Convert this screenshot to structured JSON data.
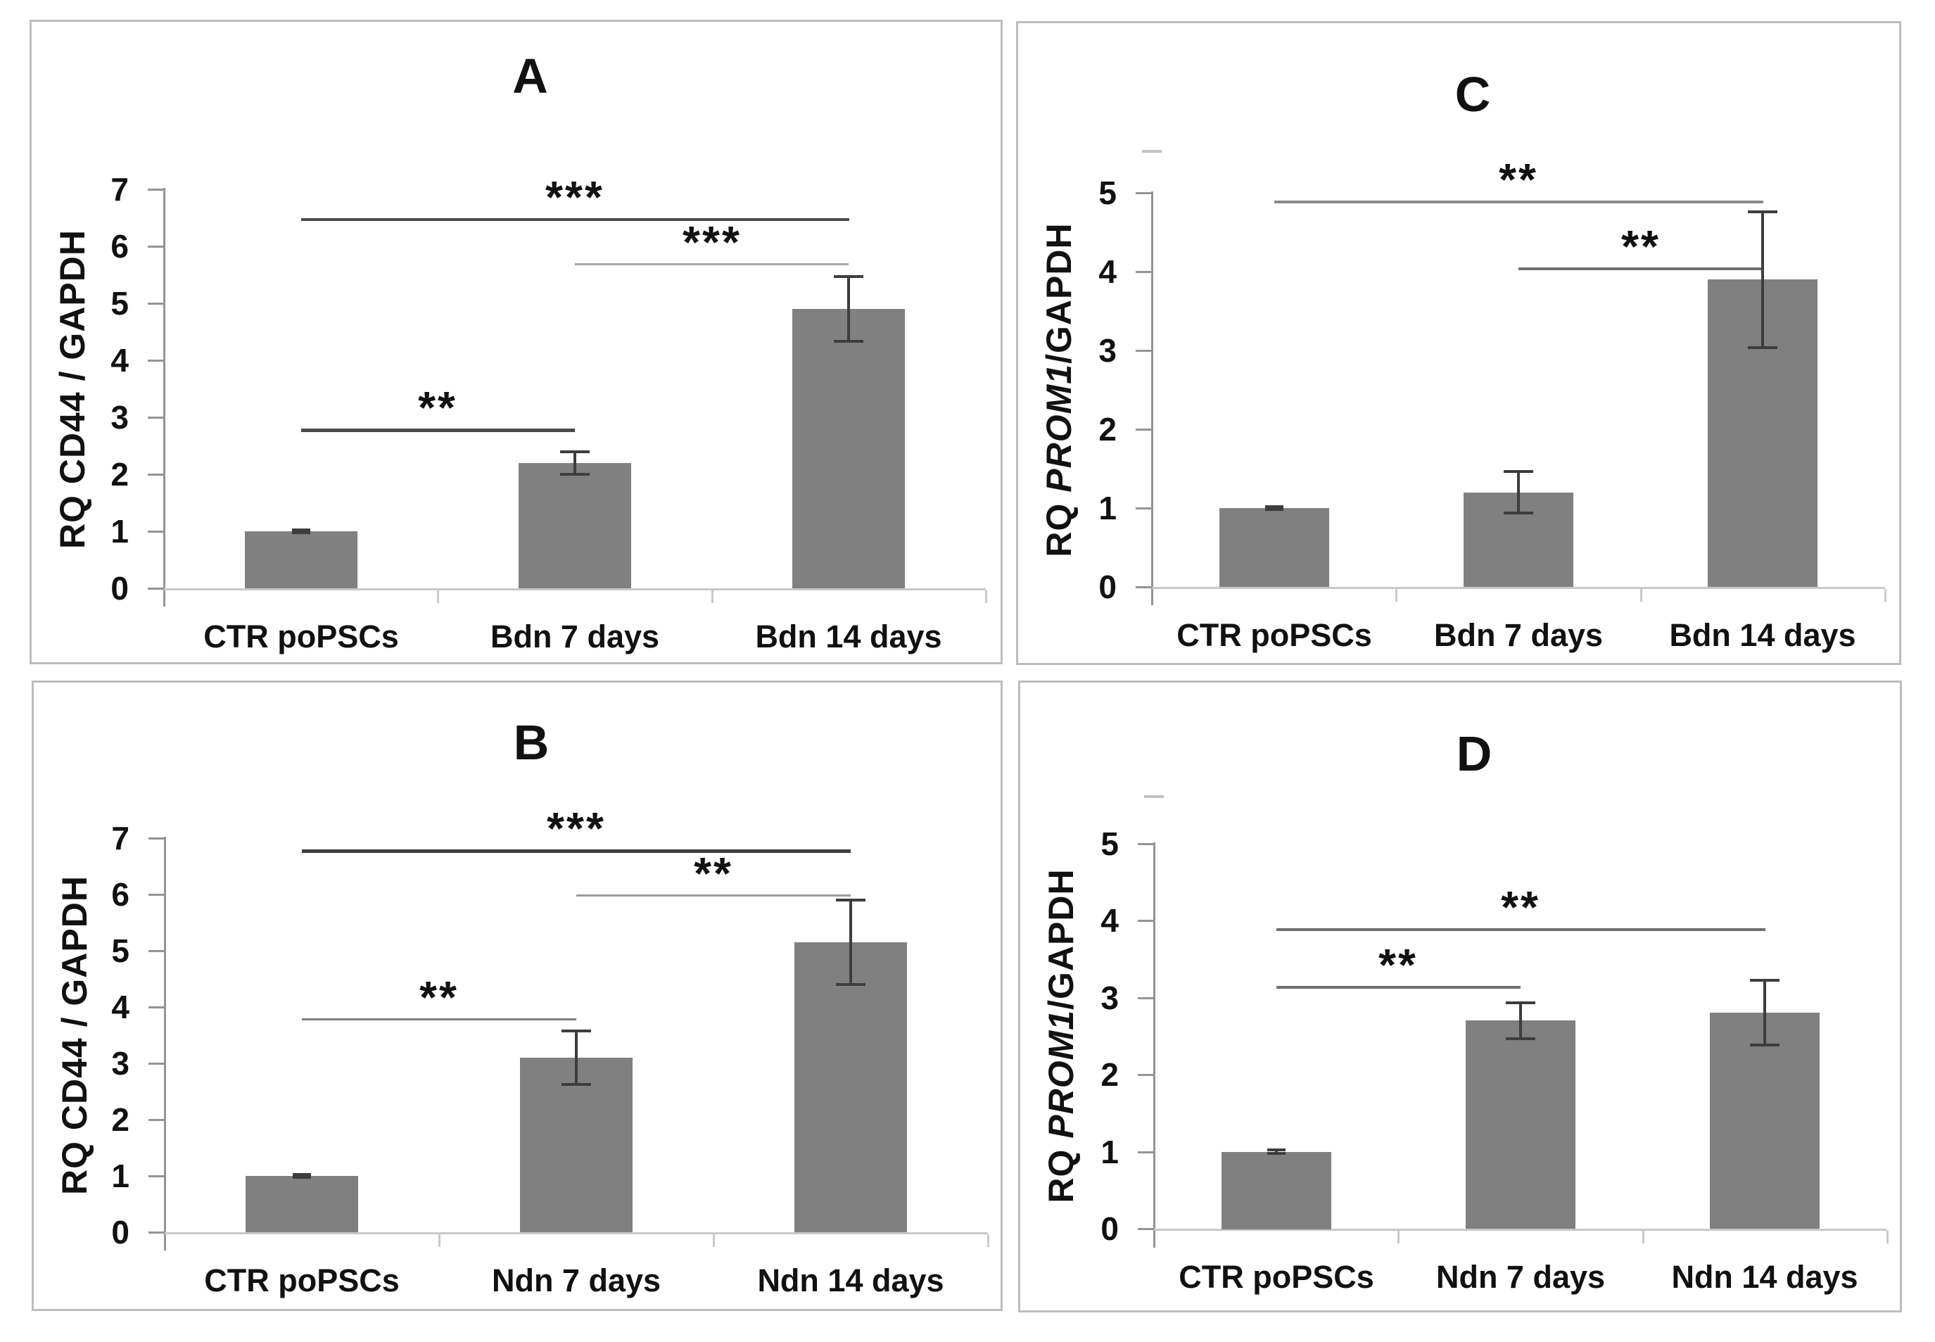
{
  "figure": {
    "colors": {
      "background": "#ffffff",
      "bar": "#808080",
      "error_bar": "#3d3d3d",
      "axis": "#949494",
      "baseline": "#c9c9c9",
      "text": "#111111",
      "panel_border": "#bdbdbd",
      "artifact_tick": "#c2c2c2"
    }
  },
  "chart_data": [
    {
      "panel": "A",
      "type": "bar",
      "title": "A",
      "ylabel": "RQ CD44 / GAPDH",
      "ylabel_parts": [
        {
          "text": "RQ CD44 / GAPDH",
          "italic": false
        }
      ],
      "xlabel": "",
      "categories": [
        "CTR poPSCs",
        "Bdn 7 days",
        "Bdn 14 days"
      ],
      "values": [
        1.0,
        2.2,
        4.9
      ],
      "errors": [
        0.02,
        0.2,
        0.57
      ],
      "ylim": [
        0,
        7
      ],
      "yticks": [
        0,
        1,
        2,
        3,
        4,
        5,
        6,
        7
      ],
      "grid": false,
      "legend": null,
      "significance": [
        {
          "from": 0,
          "to": 2,
          "y": 6.5,
          "label": "***",
          "line_color": "#4a4a4a",
          "line_width": 4
        },
        {
          "from": 1,
          "to": 2,
          "y": 5.7,
          "label": "***",
          "line_color": "#a8a8a8",
          "line_width": 3
        },
        {
          "from": 0,
          "to": 1,
          "y": 2.8,
          "label": "**",
          "line_color": "#4a4a4a",
          "line_width": 5
        }
      ],
      "artifact_tick": false
    },
    {
      "panel": "C",
      "type": "bar",
      "title": "C",
      "ylabel": "RQ PROM1/GAPDH",
      "ylabel_parts": [
        {
          "text": "RQ ",
          "italic": false
        },
        {
          "text": "PROM1",
          "italic": true
        },
        {
          "text": "/GAPDH",
          "italic": false
        }
      ],
      "xlabel": "",
      "categories": [
        "CTR poPSCs",
        "Bdn 7 days",
        "Bdn 14 days"
      ],
      "values": [
        1.0,
        1.2,
        3.9
      ],
      "errors": [
        0.02,
        0.26,
        0.86
      ],
      "ylim": [
        0,
        5
      ],
      "yticks": [
        0,
        1,
        2,
        3,
        4,
        5
      ],
      "grid": false,
      "legend": null,
      "significance": [
        {
          "from": 0,
          "to": 2,
          "y": 4.9,
          "label": "**",
          "line_color": "#8a8a8a",
          "line_width": 4
        },
        {
          "from": 1,
          "to": 2,
          "y": 4.05,
          "label": "**",
          "line_color": "#6f6f6f",
          "line_width": 4
        }
      ],
      "artifact_tick": true
    },
    {
      "panel": "B",
      "type": "bar",
      "title": "B",
      "ylabel": "RQ CD44 / GAPDH",
      "ylabel_parts": [
        {
          "text": "RQ CD44 / GAPDH",
          "italic": false
        }
      ],
      "xlabel": "",
      "categories": [
        "CTR poPSCs",
        "Ndn 7 days",
        "Ndn 14 days"
      ],
      "values": [
        1.0,
        3.1,
        5.15
      ],
      "errors": [
        0.02,
        0.47,
        0.75
      ],
      "ylim": [
        0,
        7
      ],
      "yticks": [
        0,
        1,
        2,
        3,
        4,
        5,
        6,
        7
      ],
      "grid": false,
      "legend": null,
      "significance": [
        {
          "from": 0,
          "to": 2,
          "y": 6.8,
          "label": "***",
          "line_color": "#3f3f3f",
          "line_width": 5
        },
        {
          "from": 1,
          "to": 2,
          "y": 6.0,
          "label": "**",
          "line_color": "#9b9b9b",
          "line_width": 3
        },
        {
          "from": 0,
          "to": 1,
          "y": 3.8,
          "label": "**",
          "line_color": "#7d7d7d",
          "line_width": 3
        }
      ],
      "artifact_tick": false
    },
    {
      "panel": "D",
      "type": "bar",
      "title": "D",
      "ylabel": "RQ PROM1/GAPDH",
      "ylabel_parts": [
        {
          "text": "RQ ",
          "italic": false
        },
        {
          "text": "PROM1",
          "italic": true
        },
        {
          "text": "/GAPDH",
          "italic": false
        }
      ],
      "xlabel": "",
      "categories": [
        "CTR poPSCs",
        "Ndn 7 days",
        "Ndn 14 days"
      ],
      "values": [
        1.0,
        2.7,
        2.8
      ],
      "errors": [
        0.02,
        0.23,
        0.42
      ],
      "ylim": [
        0,
        5
      ],
      "yticks": [
        0,
        1,
        2,
        3,
        4,
        5
      ],
      "grid": false,
      "legend": null,
      "significance": [
        {
          "from": 0,
          "to": 2,
          "y": 3.9,
          "label": "**",
          "line_color": "#6f6f6f",
          "line_width": 4
        },
        {
          "from": 0,
          "to": 1,
          "y": 3.15,
          "label": "**",
          "line_color": "#6f6f6f",
          "line_width": 4
        }
      ],
      "artifact_tick": true
    }
  ]
}
